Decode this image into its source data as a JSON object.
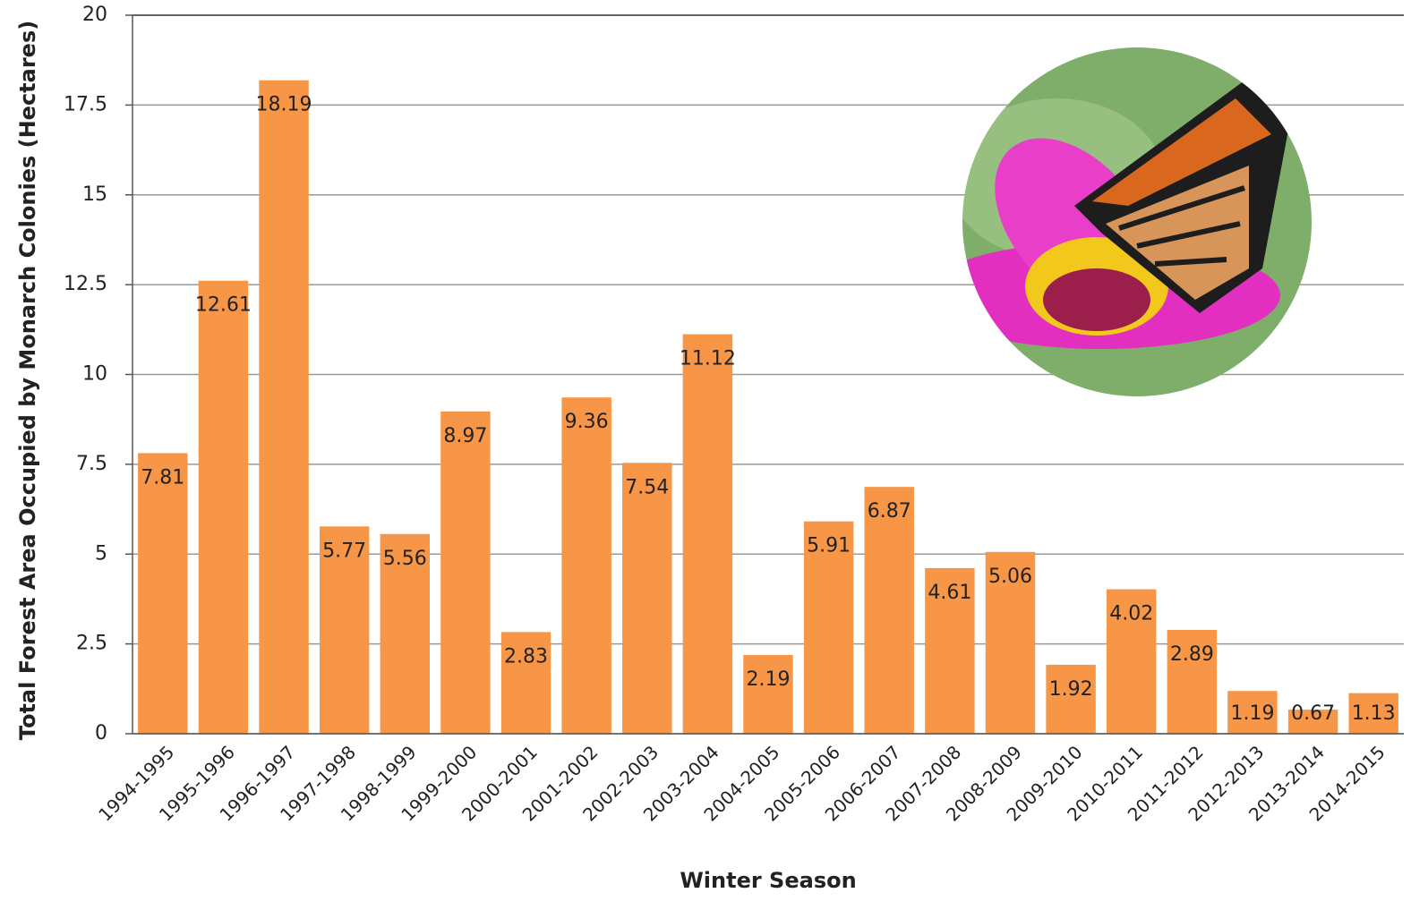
{
  "chart_data": {
    "type": "bar",
    "x_label": "Winter Season",
    "y_label": "Total Forest Area Occupied by Monarch Colonies (Hectares)",
    "categories": [
      "1994-1995",
      "1995-1996",
      "1996-1997",
      "1997-1998",
      "1998-1999",
      "1999-2000",
      "2000-2001",
      "2001-2002",
      "2002-2003",
      "2003-2004",
      "2004-2005",
      "2005-2006",
      "2006-2007",
      "2007-2008",
      "2008-2009",
      "2009-2010",
      "2010-2011",
      "2011-2012",
      "2012-2013",
      "2013-2014",
      "2014-2015"
    ],
    "values": [
      7.81,
      12.61,
      18.19,
      5.77,
      5.56,
      8.97,
      2.83,
      9.36,
      7.54,
      11.12,
      2.19,
      5.91,
      6.87,
      4.61,
      5.06,
      1.92,
      4.02,
      2.89,
      1.19,
      0.67,
      1.13
    ],
    "color": "#f79646",
    "ylim": [
      0,
      20
    ],
    "yticks": [
      0,
      2.5,
      5,
      7.5,
      10,
      12.5,
      15,
      17.5,
      20
    ],
    "grid": true
  }
}
